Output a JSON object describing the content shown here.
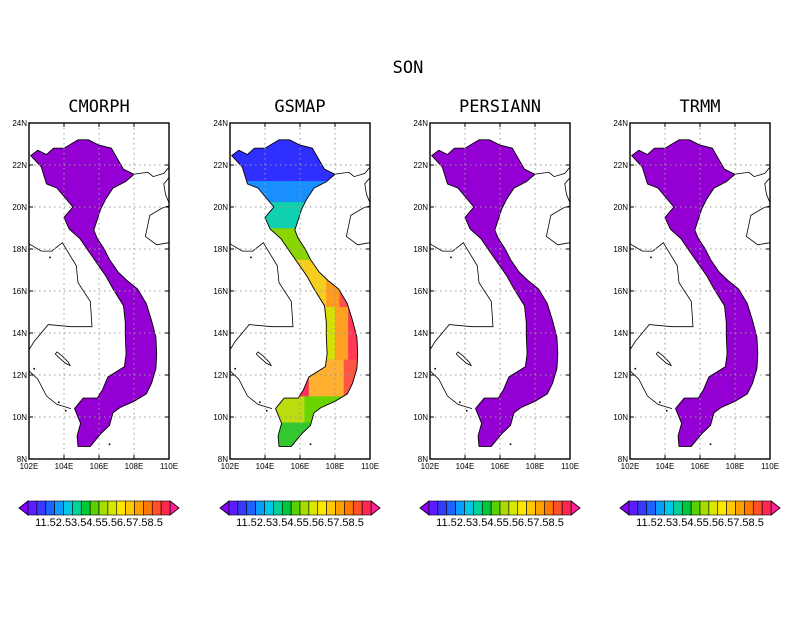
{
  "figure": {
    "title": "SON"
  },
  "panels": [
    {
      "title": "CMORPH",
      "mode": "uniform"
    },
    {
      "title": "GSMAP",
      "mode": "gradient"
    },
    {
      "title": "PERSIANN",
      "mode": "uniform"
    },
    {
      "title": "TRMM",
      "mode": "uniform"
    }
  ],
  "axes": {
    "x_range": [
      102,
      110
    ],
    "y_range": [
      8,
      24
    ],
    "x_ticks": [
      "102E",
      "104E",
      "106E",
      "108E",
      "110E"
    ],
    "y_ticks": [
      "8N",
      "10N",
      "12N",
      "14N",
      "16N",
      "18N",
      "20N",
      "22N",
      "24N"
    ],
    "grid": "dotted"
  },
  "colorbar": {
    "label_text": "11.52.53.54.55.56.57.58.5",
    "colors": [
      "#8b00ff",
      "#5b1cff",
      "#3a3aff",
      "#1e63ff",
      "#0a9dff",
      "#00c8e6",
      "#00d29a",
      "#00c83c",
      "#55d200",
      "#a6dc00",
      "#d8e600",
      "#ffe600",
      "#ffc800",
      "#ffa000",
      "#ff7800",
      "#ff5028",
      "#ff2850",
      "#ff1e96"
    ]
  },
  "colors": {
    "uniform_fill": "#9400d3",
    "grid": "#9a9a9a",
    "coast": "#000000"
  }
}
